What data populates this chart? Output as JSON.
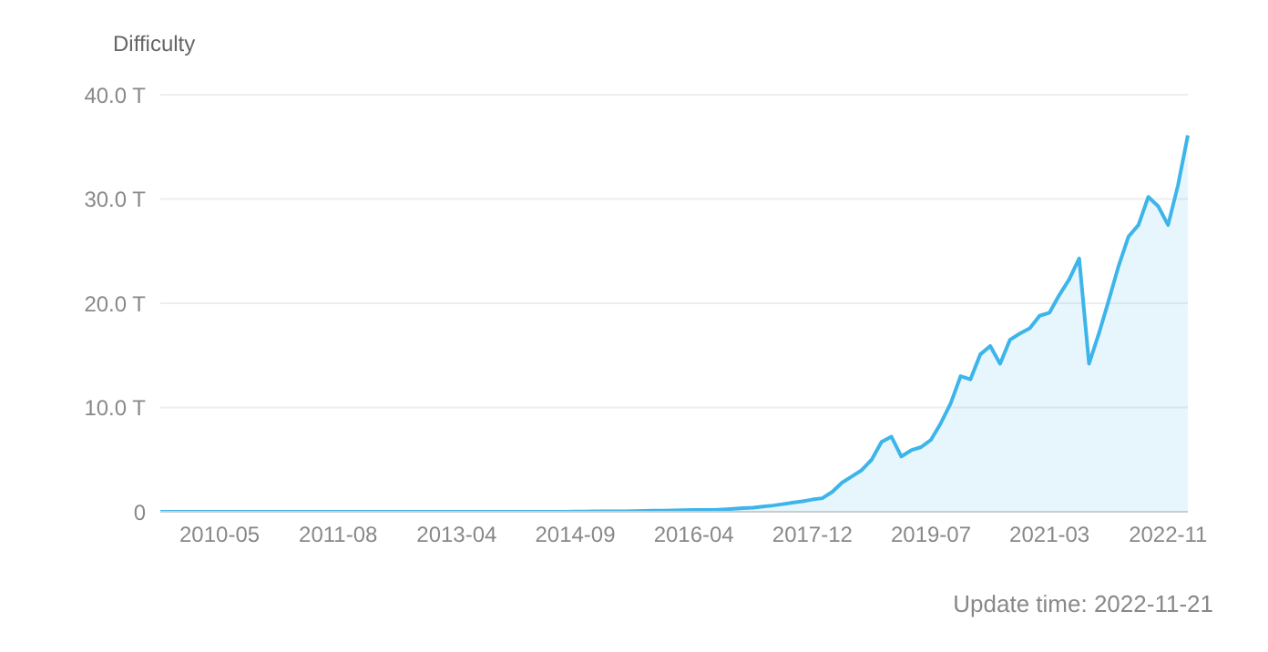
{
  "chart_data": {
    "type": "area",
    "ylabel": "Difficulty",
    "categories": [
      null,
      null,
      null,
      null,
      null,
      null,
      "2010-05",
      null,
      null,
      null,
      null,
      null,
      null,
      null,
      null,
      null,
      null,
      null,
      "2011-08",
      null,
      null,
      null,
      null,
      null,
      null,
      null,
      null,
      null,
      null,
      null,
      "2013-04",
      null,
      null,
      null,
      null,
      null,
      null,
      null,
      null,
      null,
      null,
      null,
      "2014-09",
      null,
      null,
      null,
      null,
      null,
      null,
      null,
      null,
      null,
      null,
      null,
      "2016-04",
      null,
      null,
      null,
      null,
      null,
      null,
      null,
      null,
      null,
      null,
      null,
      "2017-12",
      null,
      null,
      null,
      null,
      null,
      null,
      null,
      null,
      null,
      null,
      null,
      "2019-07",
      null,
      null,
      null,
      null,
      null,
      null,
      null,
      null,
      null,
      null,
      null,
      "2021-03",
      null,
      null,
      null,
      null,
      null,
      null,
      null,
      null,
      null,
      null,
      null,
      "2022-11",
      null,
      null
    ],
    "series": [
      {
        "color": "#3db5ea",
        "values": [
          0,
          0,
          0,
          0,
          0,
          0,
          0,
          0,
          0,
          0,
          0,
          0,
          0,
          0,
          0,
          0,
          0,
          0,
          0,
          0,
          0,
          0,
          0,
          0,
          0,
          0,
          0,
          0,
          0,
          0,
          0,
          0,
          0,
          0,
          0,
          0,
          0,
          0,
          0,
          0,
          0,
          0,
          0.03,
          0.03,
          0.04,
          0.04,
          0.05,
          0.05,
          0.06,
          0.08,
          0.1,
          0.12,
          0.14,
          0.16,
          0.17,
          0.17,
          0.17,
          0.22,
          0.28,
          0.34,
          0.4,
          0.5,
          0.6,
          0.73,
          0.87,
          1.0,
          1.17,
          1.3,
          1.9,
          2.8,
          3.4,
          4.0,
          5.0,
          6.7,
          7.2,
          5.3,
          5.9,
          6.2,
          6.9,
          8.5,
          10.4,
          13.0,
          12.7,
          15.1,
          15.9,
          14.2,
          16.5,
          17.1,
          17.6,
          18.8,
          19.1,
          20.8,
          22.3,
          24.3,
          14.2,
          17.1,
          20.3,
          23.6,
          26.4,
          27.5,
          30.2,
          29.3,
          27.5,
          31.3,
          36.1
        ]
      }
    ],
    "ylim": [
      0,
      40
    ],
    "yticks": [
      {
        "value": 0,
        "label": "0"
      },
      {
        "value": 10,
        "label": "10.0 T"
      },
      {
        "value": 20,
        "label": "20.0 T"
      },
      {
        "value": 30,
        "label": "30.0 T"
      },
      {
        "value": 40,
        "label": "40.0 T"
      }
    ],
    "grid": "y",
    "annotations": [
      "Update time: 2022-11-21"
    ]
  }
}
